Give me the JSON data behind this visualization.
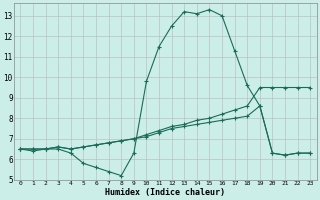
{
  "xlabel": "Humidex (Indice chaleur)",
  "x_values": [
    0,
    1,
    2,
    3,
    4,
    5,
    6,
    7,
    8,
    9,
    10,
    11,
    12,
    13,
    14,
    15,
    16,
    17,
    18,
    19,
    20,
    21,
    22,
    23
  ],
  "line1": [
    6.5,
    6.4,
    6.5,
    6.5,
    6.3,
    5.8,
    5.6,
    5.4,
    5.2,
    6.3,
    9.8,
    11.5,
    12.5,
    13.2,
    13.1,
    13.3,
    13.0,
    11.3,
    9.6,
    8.6,
    6.3,
    6.2,
    6.3,
    6.3
  ],
  "line2": [
    6.5,
    6.5,
    6.5,
    6.6,
    6.5,
    6.6,
    6.7,
    6.8,
    6.9,
    7.0,
    7.2,
    7.4,
    7.6,
    7.7,
    7.9,
    8.0,
    8.2,
    8.4,
    8.6,
    9.5,
    9.5,
    9.5,
    9.5,
    9.5
  ],
  "line3": [
    6.5,
    6.5,
    6.5,
    6.6,
    6.5,
    6.6,
    6.7,
    6.8,
    6.9,
    7.0,
    7.1,
    7.3,
    7.5,
    7.6,
    7.7,
    7.8,
    7.9,
    8.0,
    8.1,
    8.6,
    6.3,
    6.2,
    6.3,
    6.3
  ],
  "line_color": "#1a6b5a",
  "bg_color": "#cceee8",
  "grid_color": "#b8b8b8",
  "ylim": [
    5.0,
    13.6
  ],
  "xlim": [
    -0.5,
    23.5
  ],
  "yticks": [
    5,
    6,
    7,
    8,
    9,
    10,
    11,
    12,
    13
  ],
  "xticks": [
    0,
    1,
    2,
    3,
    4,
    5,
    6,
    7,
    8,
    9,
    10,
    11,
    12,
    13,
    14,
    15,
    16,
    17,
    18,
    19,
    20,
    21,
    22,
    23
  ]
}
